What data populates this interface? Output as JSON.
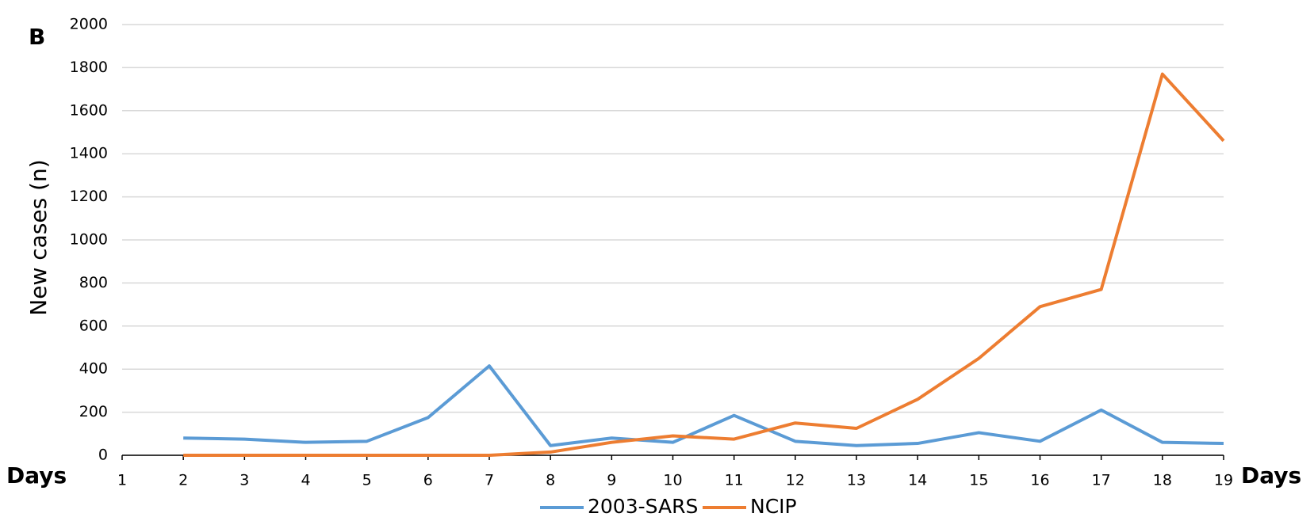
{
  "chart_data": {
    "type": "line",
    "panel_label": "B",
    "y_label": "New cases (n)",
    "x_label": "Days",
    "x": [
      2,
      3,
      4,
      5,
      6,
      7,
      8,
      9,
      10,
      11,
      12,
      13,
      14,
      15,
      16,
      17,
      18,
      19
    ],
    "series": [
      {
        "name": "2003-SARS",
        "color": "#5b9bd5",
        "values": [
          80,
          75,
          60,
          65,
          175,
          415,
          45,
          80,
          60,
          185,
          65,
          45,
          55,
          105,
          65,
          210,
          60,
          55
        ]
      },
      {
        "name": "NCIP",
        "color": "#ed7d31",
        "values": [
          0,
          0,
          0,
          0,
          0,
          0,
          15,
          60,
          90,
          75,
          150,
          125,
          260,
          450,
          690,
          770,
          1770,
          1460
        ]
      }
    ],
    "xlim": [
      1,
      19
    ],
    "xticks": [
      1,
      2,
      3,
      4,
      5,
      6,
      7,
      8,
      9,
      10,
      11,
      12,
      13,
      14,
      15,
      16,
      17,
      18,
      19
    ],
    "ylim": [
      0,
      2000
    ],
    "yticks": [
      0,
      200,
      400,
      600,
      800,
      1000,
      1200,
      1400,
      1600,
      1800,
      2000
    ],
    "grid": true,
    "legend": "bottom"
  }
}
